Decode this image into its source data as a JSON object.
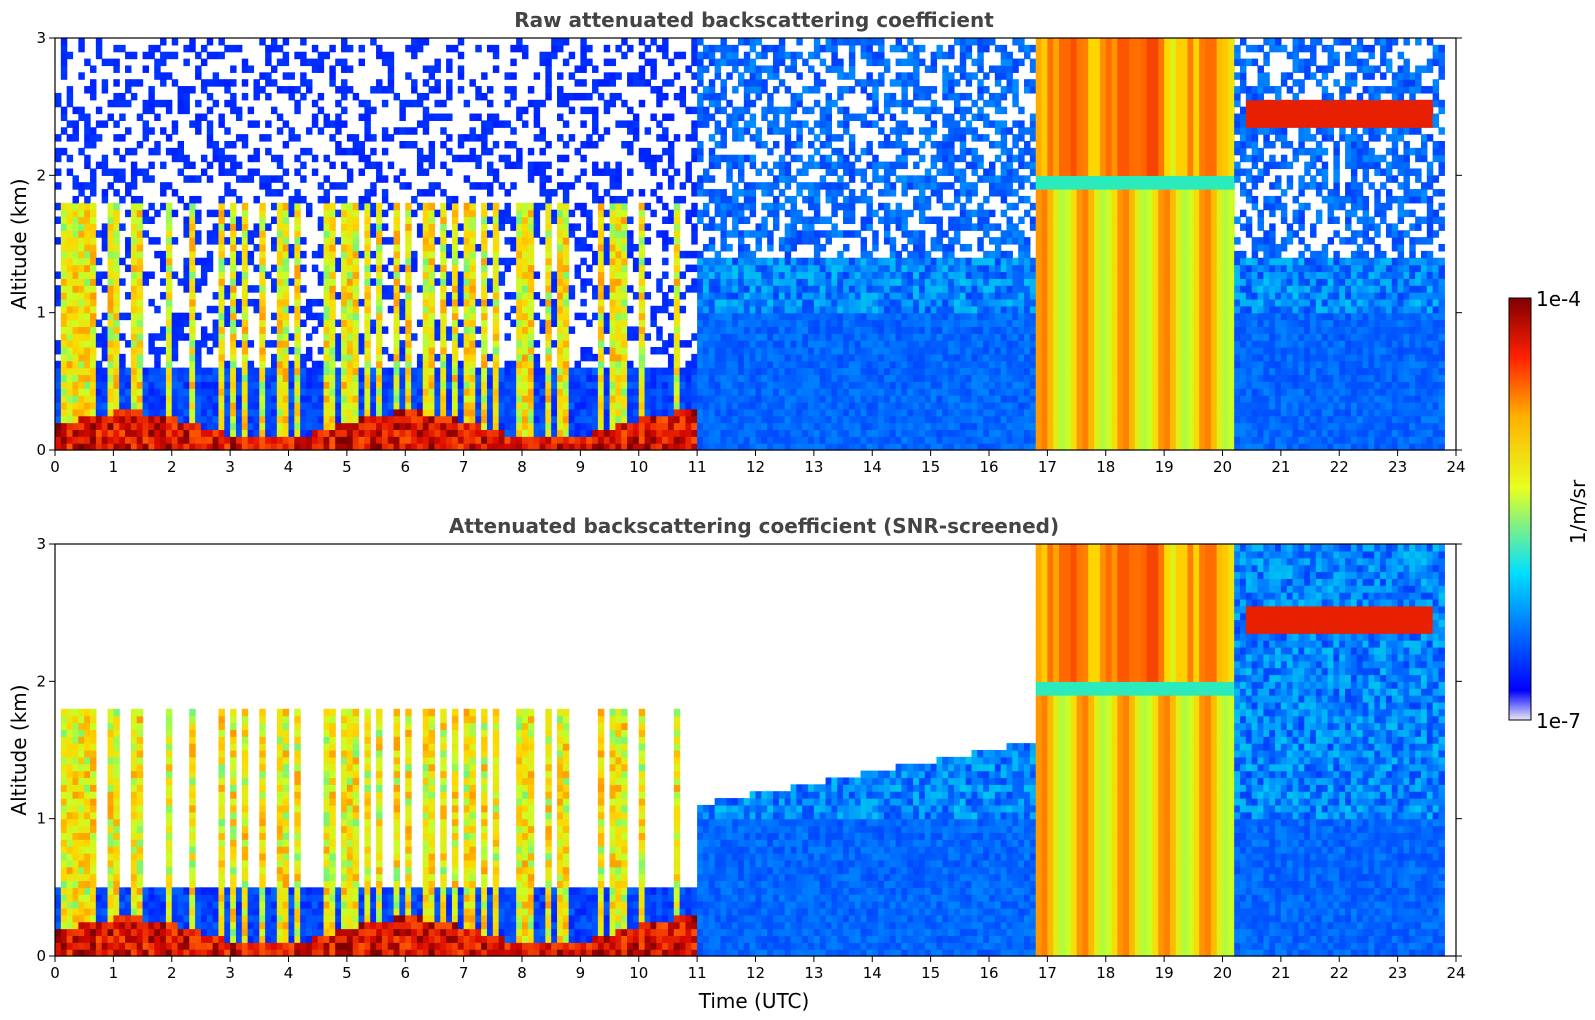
{
  "chart_data": [
    {
      "type": "heatmap",
      "title": "Raw attenuated backscattering coefficient",
      "xlabel": "",
      "ylabel": "Altitude (km)",
      "xlim": [
        0,
        24
      ],
      "ylim": [
        0,
        3
      ],
      "xticks": [
        "0",
        "1",
        "2",
        "3",
        "4",
        "5",
        "6",
        "7",
        "8",
        "9",
        "10",
        "11",
        "12",
        "13",
        "14",
        "15",
        "16",
        "17",
        "18",
        "19",
        "20",
        "21",
        "22",
        "23",
        "24"
      ],
      "yticks": [
        "0",
        "1",
        "2",
        "3"
      ],
      "screened": false
    },
    {
      "type": "heatmap",
      "title": "Attenuated backscattering coefficient (SNR-screened)",
      "xlabel": "Time (UTC)",
      "ylabel": "Altitude (km)",
      "xlim": [
        0,
        24
      ],
      "ylim": [
        0,
        3
      ],
      "xticks": [
        "0",
        "1",
        "2",
        "3",
        "4",
        "5",
        "6",
        "7",
        "8",
        "9",
        "10",
        "11",
        "12",
        "13",
        "14",
        "15",
        "16",
        "17",
        "18",
        "19",
        "20",
        "21",
        "22",
        "23",
        "24"
      ],
      "yticks": [
        "0",
        "1",
        "2",
        "3"
      ],
      "screened": true
    }
  ],
  "colorbar": {
    "label": "1/m/sr",
    "max_label": "1e-4",
    "min_label": "1e-7",
    "colormap": "jet",
    "scale": "log"
  }
}
